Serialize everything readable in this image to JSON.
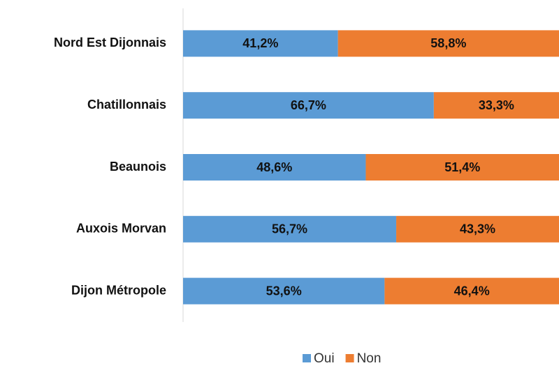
{
  "chart_data": {
    "type": "stacked-bar-horizontal",
    "categories": [
      "Nord Est Dijonnais",
      "Chatillonnais",
      "Beaunois",
      "Auxois Morvan",
      "Dijon Métropole"
    ],
    "series": [
      {
        "name": "Oui",
        "color": "#5b9bd5",
        "values": [
          41.2,
          66.7,
          48.6,
          56.7,
          53.6
        ],
        "value_labels": [
          "41,2%",
          "66,7%",
          "48,6%",
          "56,7%",
          "53,6%"
        ]
      },
      {
        "name": "Non",
        "color": "#ed7d31",
        "values": [
          58.8,
          33.3,
          51.4,
          43.3,
          46.4
        ],
        "value_labels": [
          "58,8%",
          "33,3%",
          "51,4%",
          "43,3%",
          "46,4%"
        ]
      }
    ],
    "xlim": [
      0,
      100
    ],
    "legend": "bottom"
  }
}
